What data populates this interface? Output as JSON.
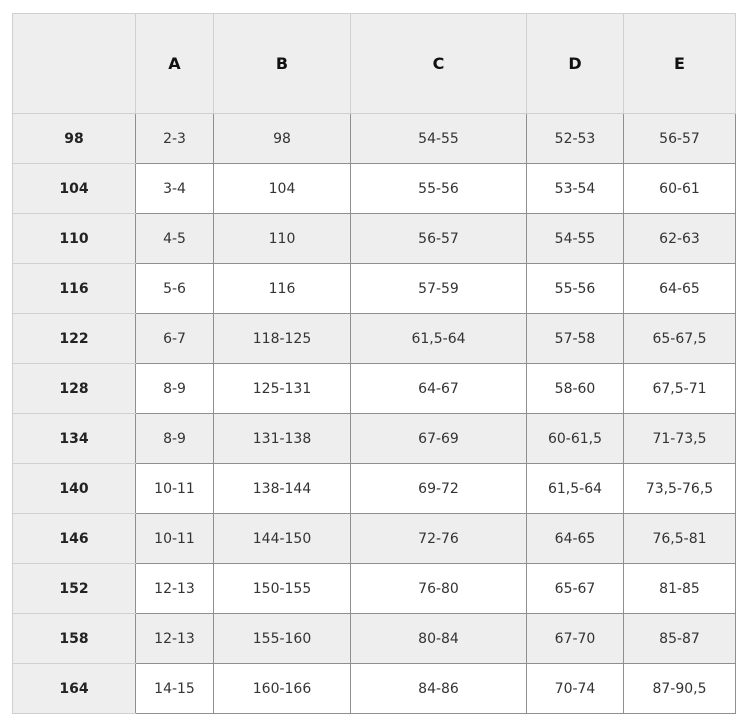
{
  "table": {
    "columns": [
      "",
      "A",
      "B",
      "C",
      "D",
      "E"
    ],
    "rows": [
      [
        "98",
        "2-3",
        "98",
        "54-55",
        "52-53",
        "56-57"
      ],
      [
        "104",
        "3-4",
        "104",
        "55-56",
        "53-54",
        "60-61"
      ],
      [
        "110",
        "4-5",
        "110",
        "56-57",
        "54-55",
        "62-63"
      ],
      [
        "116",
        "5-6",
        "116",
        "57-59",
        "55-56",
        "64-65"
      ],
      [
        "122",
        "6-7",
        "118-125",
        "61,5-64",
        "57-58",
        "65-67,5"
      ],
      [
        "128",
        "8-9",
        "125-131",
        "64-67",
        "58-60",
        "67,5-71"
      ],
      [
        "134",
        "8-9",
        "131-138",
        "67-69",
        "60-61,5",
        "71-73,5"
      ],
      [
        "140",
        "10-11",
        "138-144",
        "69-72",
        "61,5-64",
        "73,5-76,5"
      ],
      [
        "146",
        "10-11",
        "144-150",
        "72-76",
        "64-65",
        "76,5-81"
      ],
      [
        "152",
        "12-13",
        "150-155",
        "76-80",
        "65-67",
        "81-85"
      ],
      [
        "158",
        "12-13",
        "155-160",
        "80-84",
        "67-70",
        "85-87"
      ],
      [
        "164",
        "14-15",
        "160-166",
        "84-86",
        "70-74",
        "87-90,5"
      ]
    ]
  },
  "colors": {
    "stripe": "#eeeeee",
    "border": "#8f8f8f"
  }
}
